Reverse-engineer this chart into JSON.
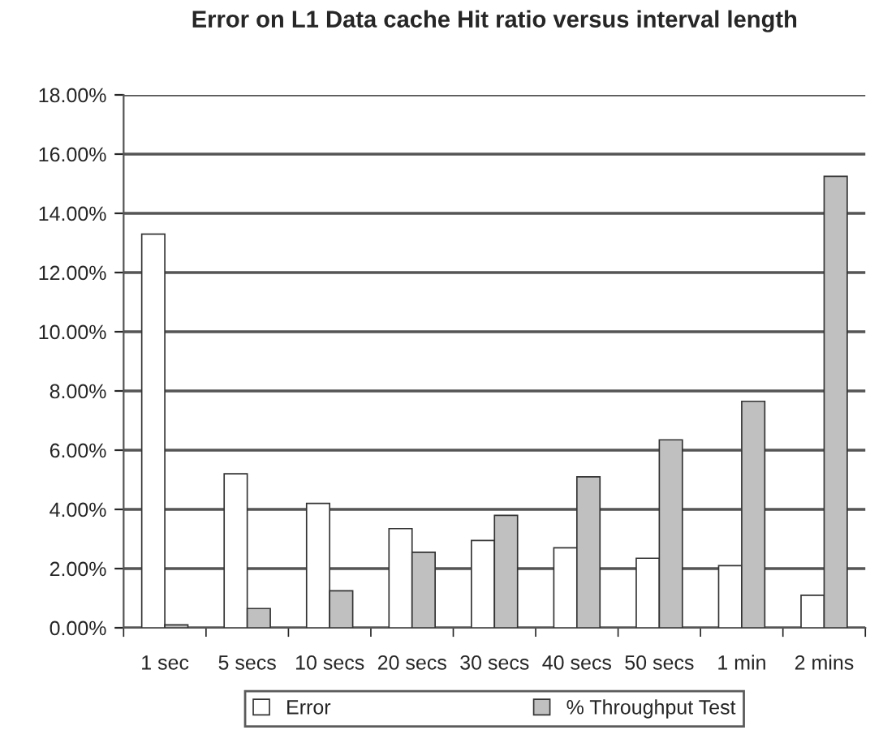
{
  "chart_data": {
    "type": "bar",
    "title": "Error on L1 Data cache Hit ratio versus interval length",
    "categories": [
      "1 sec",
      "5 secs",
      "10 secs",
      "20 secs",
      "30 secs",
      "40 secs",
      "50 secs",
      "1 min",
      "2 mins"
    ],
    "series": [
      {
        "name": "Error",
        "color": "#ffffff",
        "values": [
          13.3,
          5.2,
          4.2,
          3.35,
          2.95,
          2.7,
          2.35,
          2.1,
          1.1
        ]
      },
      {
        "name": "% Throughput Test",
        "color": "#c0c0c0",
        "values": [
          0.1,
          0.65,
          1.25,
          2.55,
          3.8,
          5.1,
          6.35,
          7.65,
          15.25
        ]
      }
    ],
    "ylim": [
      0,
      18
    ],
    "yticks": [
      {
        "value": 0,
        "label": "0.00%"
      },
      {
        "value": 2,
        "label": "2.00%"
      },
      {
        "value": 4,
        "label": "4.00%"
      },
      {
        "value": 6,
        "label": "6.00%"
      },
      {
        "value": 8,
        "label": "8.00%"
      },
      {
        "value": 10,
        "label": "10.00%"
      },
      {
        "value": 12,
        "label": "12.00%"
      },
      {
        "value": 14,
        "label": "14.00%"
      },
      {
        "value": 16,
        "label": "16.00%"
      },
      {
        "value": 18,
        "label": "18.00%"
      }
    ],
    "grid": "y",
    "legend": "bottom"
  }
}
